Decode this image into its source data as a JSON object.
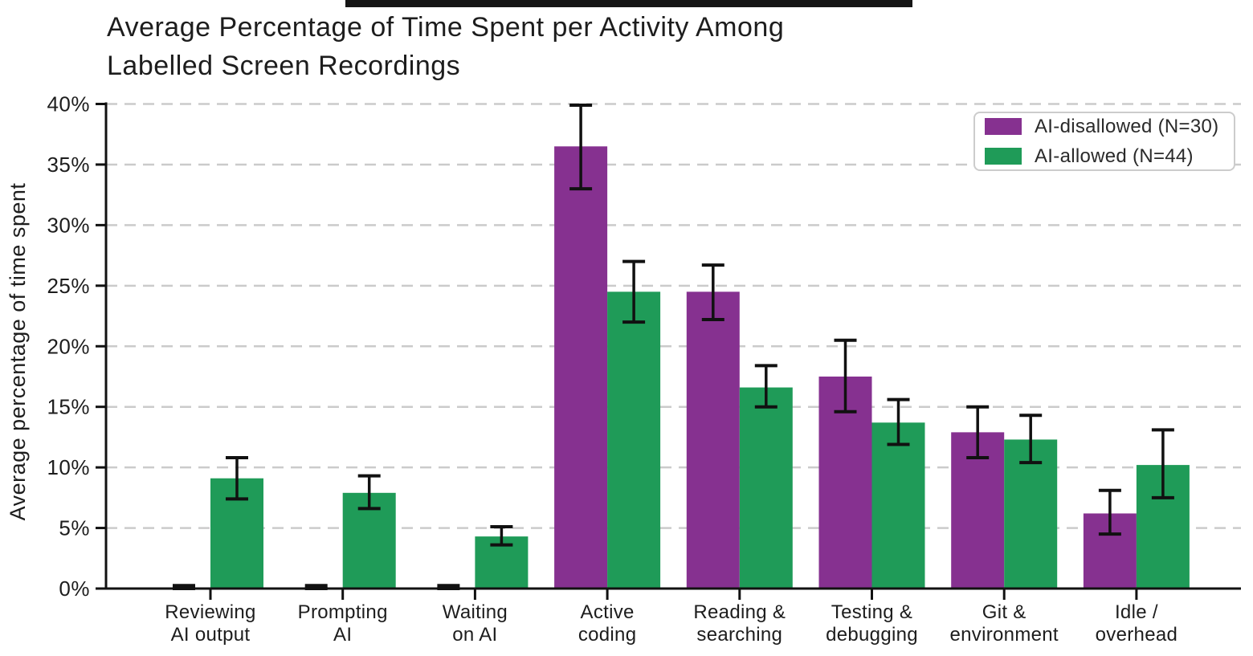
{
  "chart_data": {
    "type": "bar",
    "title": "Average Percentage of Time Spent per Activity Among Labelled Screen Recordings",
    "title_lines": [
      "Average Percentage of Time Spent per Activity Among",
      "Labelled Screen Recordings"
    ],
    "ylabel": "Average percentage of time spent",
    "xlabel": "",
    "ylim": [
      0,
      40
    ],
    "ytick_values": [
      0,
      5,
      10,
      15,
      20,
      25,
      30,
      35,
      40
    ],
    "ytick_labels": [
      "0%",
      "5%",
      "10%",
      "15%",
      "20%",
      "25%",
      "30%",
      "35%",
      "40%"
    ],
    "grid": "horizontal dashed gridlines at 5% steps",
    "legend_position": "upper right",
    "categories": [
      "Reviewing AI output",
      "Prompting AI",
      "Waiting on AI",
      "Active coding",
      "Reading & searching",
      "Testing & debugging",
      "Git & environment",
      "Idle / overhead"
    ],
    "category_lines": [
      [
        "Reviewing",
        "AI output"
      ],
      [
        "Prompting",
        "AI"
      ],
      [
        "Waiting",
        "on AI"
      ],
      [
        "Active",
        "coding"
      ],
      [
        "Reading &",
        "searching"
      ],
      [
        "Testing &",
        "debugging"
      ],
      [
        "Git &",
        "environment"
      ],
      [
        "Idle /",
        "overhead"
      ]
    ],
    "series": [
      {
        "name": "AI-disallowed (N=30)",
        "color": "#863190",
        "values": [
          0.05,
          0.05,
          0.05,
          36.5,
          24.5,
          17.5,
          12.9,
          6.2
        ],
        "err_low": [
          0.0,
          0.0,
          0.0,
          33.0,
          22.2,
          14.6,
          10.8,
          4.5
        ],
        "err_high": [
          0.25,
          0.25,
          0.25,
          39.9,
          26.7,
          20.5,
          15.0,
          8.1
        ]
      },
      {
        "name": "AI-allowed (N=44)",
        "color": "#1f9b58",
        "values": [
          9.1,
          7.9,
          4.3,
          24.5,
          16.6,
          13.7,
          12.3,
          10.2
        ],
        "err_low": [
          7.4,
          6.6,
          3.6,
          22.0,
          15.0,
          11.9,
          10.4,
          7.5
        ],
        "err_high": [
          10.8,
          9.3,
          5.1,
          27.0,
          18.4,
          15.6,
          14.3,
          13.1
        ]
      }
    ],
    "style": {
      "grid_color": "#cbcbcb",
      "axis_color": "#111111",
      "errorbar_color": "#111111",
      "text_color": "#1d1d1d"
    }
  }
}
